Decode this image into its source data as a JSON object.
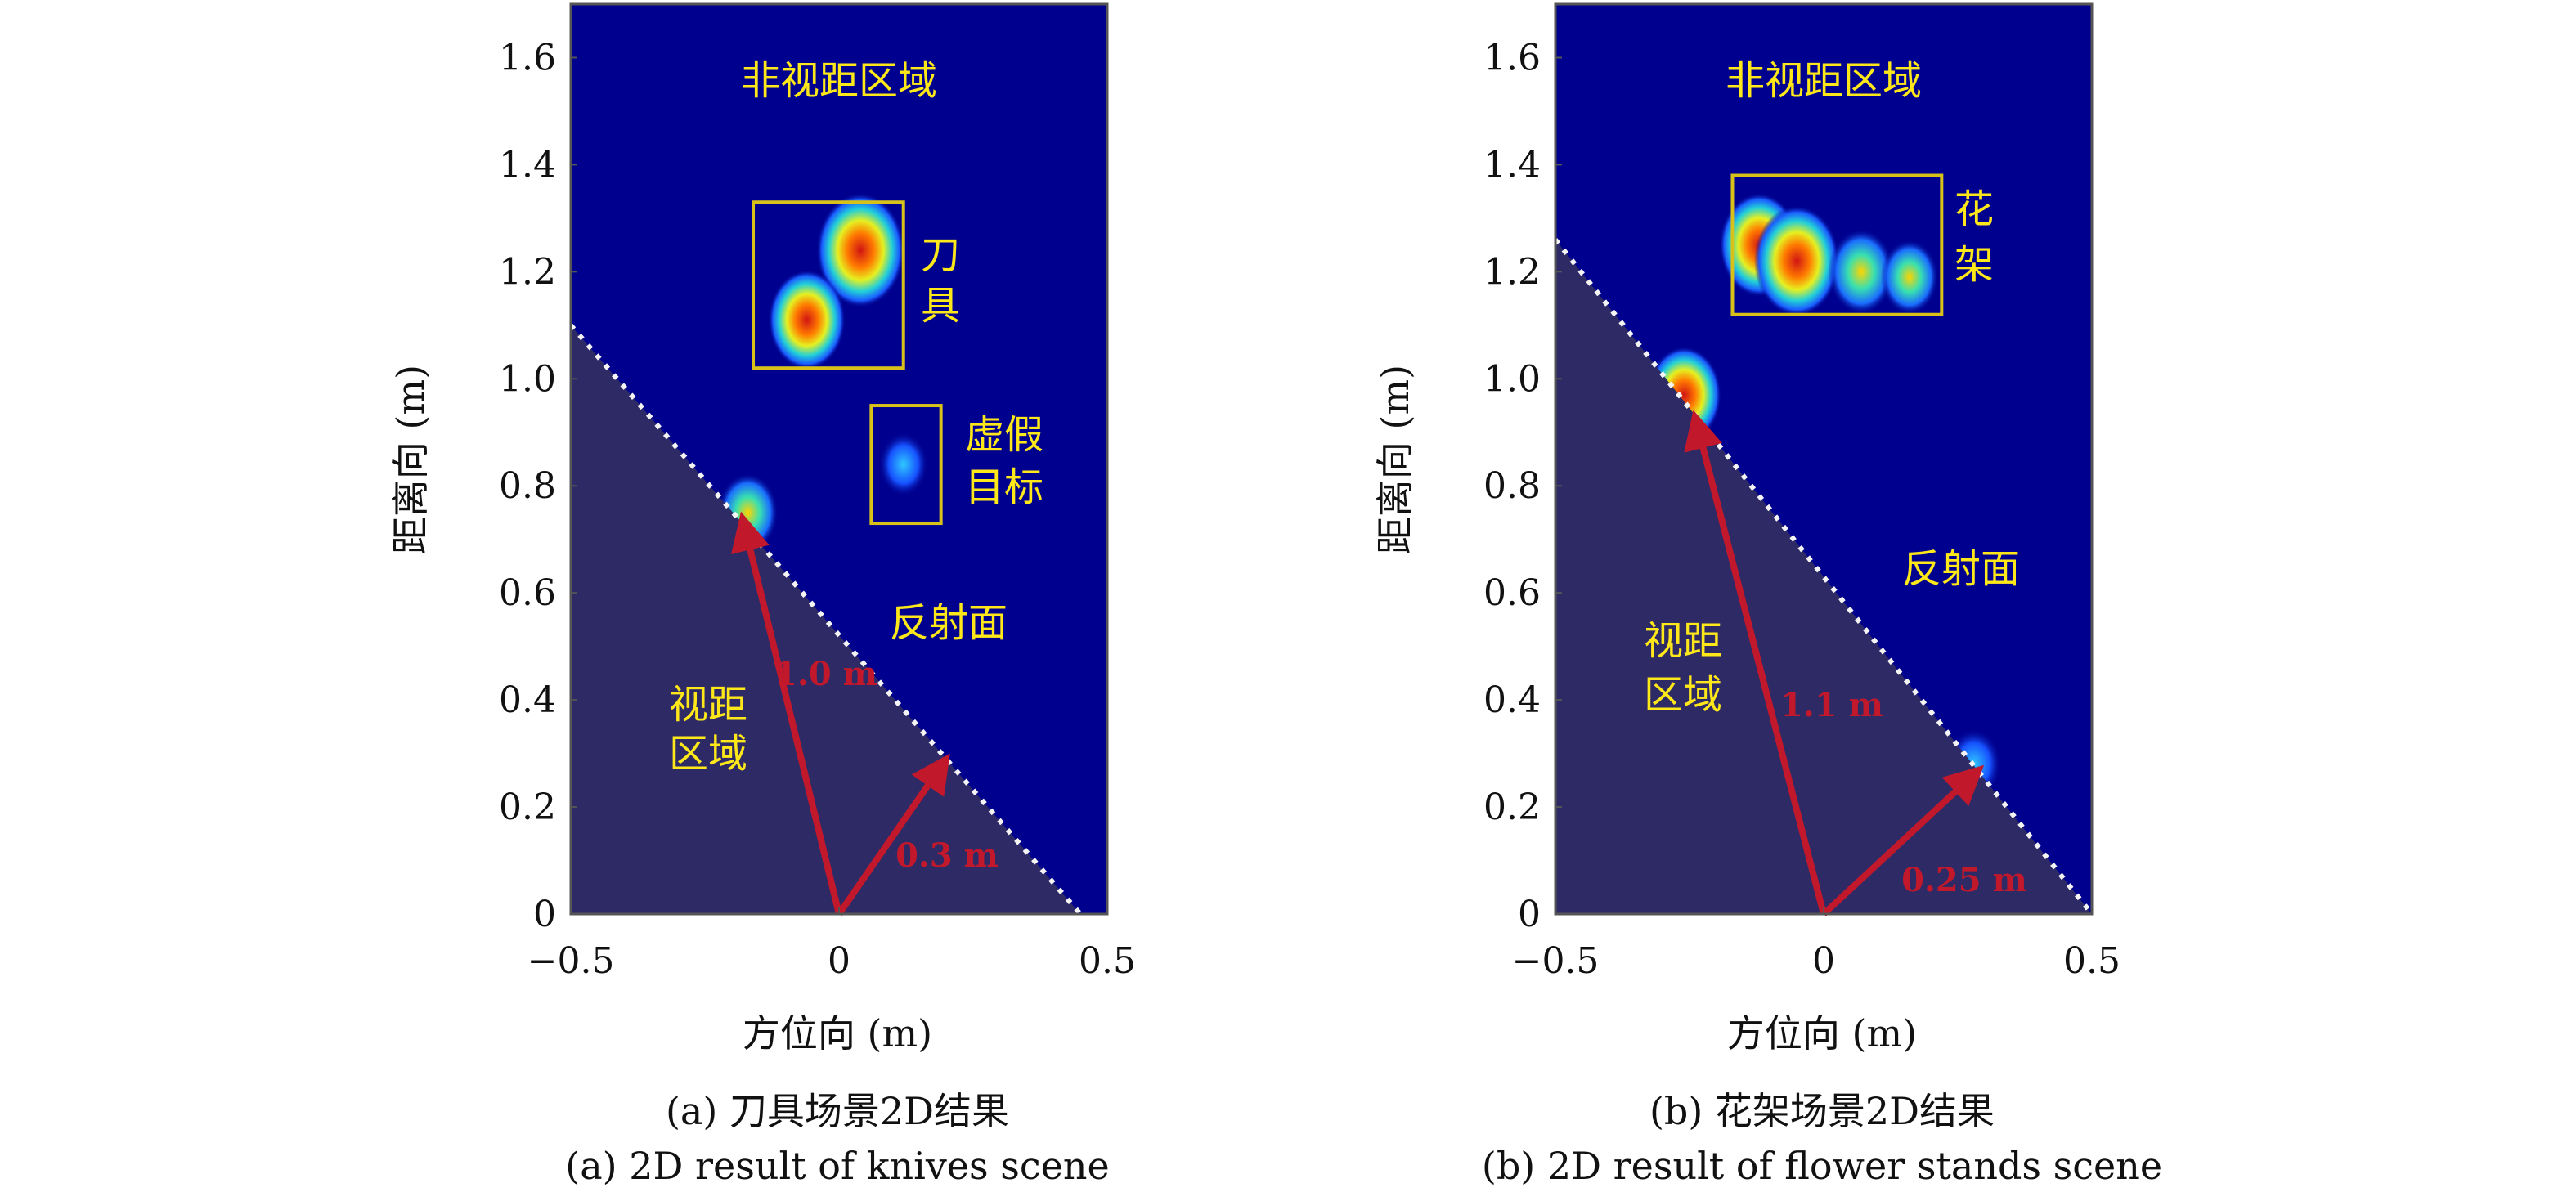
{
  "chart_data": [
    {
      "type": "heatmap",
      "id": "a",
      "xlabel": "方位向 (m)",
      "ylabel": "距离向 (m)",
      "xlim": [
        -0.5,
        0.5
      ],
      "ylim": [
        0,
        1.7
      ],
      "xticks": [
        "−0.5",
        "0",
        "0.5"
      ],
      "yticks": [
        "0",
        "0.2",
        "0.4",
        "0.6",
        "0.8",
        "1.0",
        "1.2",
        "1.4",
        "1.6"
      ],
      "caption_cn": "(a) 刀具场景2D结果",
      "caption_en": "(a) 2D result of knives scene",
      "region_nlos": "非视距区域",
      "region_los": [
        "视距",
        "区域"
      ],
      "reflector_label": "反射面",
      "target_label": [
        "刀",
        "具"
      ],
      "ghost_label": [
        "虚假",
        "目标"
      ],
      "dist_labels": [
        "1.0 m",
        "0.3 m"
      ],
      "reflector": {
        "x": [
          -0.5,
          0.45
        ],
        "y": [
          1.1,
          0
        ]
      },
      "radar_origin": {
        "x": 0,
        "y": 0
      },
      "arrows": [
        {
          "to_x": -0.18,
          "to_y": 0.74
        },
        {
          "to_x": 0.2,
          "to_y": 0.29
        }
      ],
      "boxes": [
        {
          "x": [
            -0.16,
            0.12
          ],
          "y": [
            1.02,
            1.33
          ]
        },
        {
          "x": [
            0.06,
            0.19
          ],
          "y": [
            0.73,
            0.95
          ]
        }
      ],
      "hotspots": [
        {
          "x": 0.04,
          "y": 1.24,
          "level": 1.0
        },
        {
          "x": -0.06,
          "y": 1.11,
          "level": 0.8
        },
        {
          "x": -0.17,
          "y": 0.75,
          "level": 0.5
        },
        {
          "x": 0.12,
          "y": 0.84,
          "level": 0.3
        }
      ]
    },
    {
      "type": "heatmap",
      "id": "b",
      "xlabel": "方位向 (m)",
      "ylabel": "距离向 (m)",
      "xlim": [
        -0.5,
        0.5
      ],
      "ylim": [
        0,
        1.7
      ],
      "xticks": [
        "−0.5",
        "0",
        "0.5"
      ],
      "yticks": [
        "0",
        "0.2",
        "0.4",
        "0.6",
        "0.8",
        "1.0",
        "1.2",
        "1.4",
        "1.6"
      ],
      "caption_cn": "(b) 花架场景2D结果",
      "caption_en": "(b) 2D result of flower stands scene",
      "region_nlos": "非视距区域",
      "region_los": [
        "视距",
        "区域"
      ],
      "reflector_label": "反射面",
      "target_label": [
        "花",
        "架"
      ],
      "ghost_label": [],
      "dist_labels": [
        "1.1 m",
        "0.25 m"
      ],
      "reflector": {
        "x": [
          -0.5,
          0.5
        ],
        "y": [
          1.26,
          0
        ]
      },
      "radar_origin": {
        "x": 0,
        "y": 0
      },
      "arrows": [
        {
          "to_x": -0.24,
          "to_y": 0.93
        },
        {
          "to_x": 0.29,
          "to_y": 0.27
        }
      ],
      "boxes": [
        {
          "x": [
            -0.17,
            0.22
          ],
          "y": [
            1.12,
            1.38
          ]
        }
      ],
      "hotspots": [
        {
          "x": -0.12,
          "y": 1.25,
          "level": 0.85
        },
        {
          "x": -0.05,
          "y": 1.22,
          "level": 0.95
        },
        {
          "x": 0.07,
          "y": 1.2,
          "level": 0.6
        },
        {
          "x": 0.16,
          "y": 1.19,
          "level": 0.45
        },
        {
          "x": -0.26,
          "y": 0.97,
          "level": 0.75
        },
        {
          "x": 0.28,
          "y": 0.28,
          "level": 0.4
        }
      ]
    }
  ]
}
